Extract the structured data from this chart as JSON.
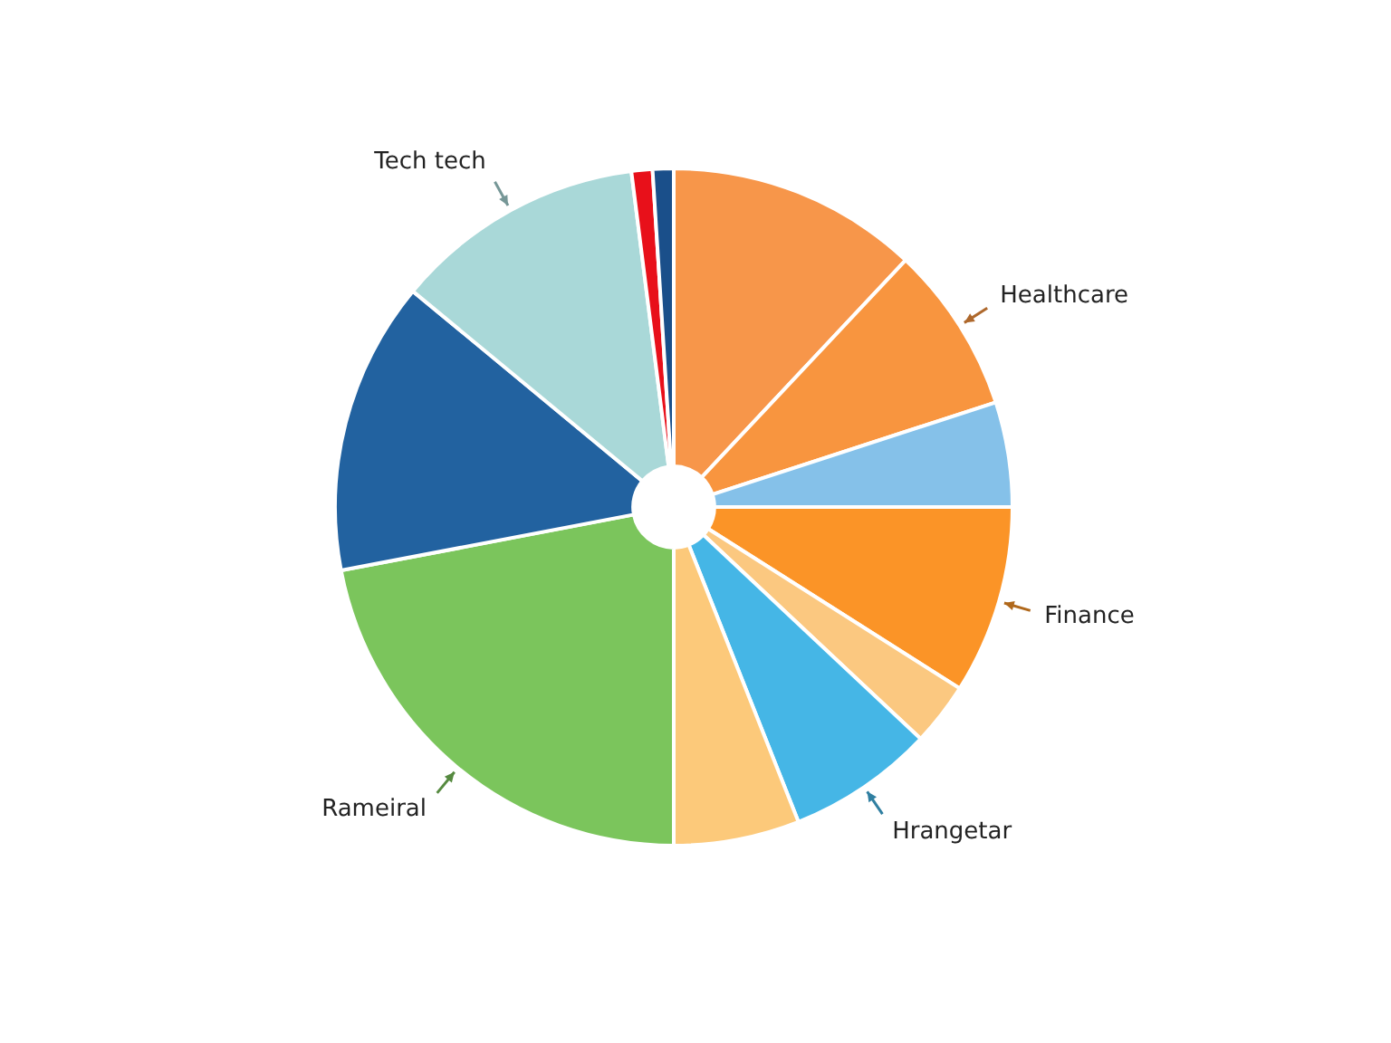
{
  "chart_data": {
    "type": "pie",
    "categories": [
      null,
      "Healthcare",
      null,
      "Finance",
      null,
      "Hrangetar",
      null,
      "Rameiral",
      null,
      "Tech tech",
      null,
      null
    ],
    "values": [
      12,
      8,
      5,
      9,
      3,
      7,
      6,
      22,
      14,
      12,
      1,
      1
    ],
    "colors": [
      "#f7964a",
      "#f8953f",
      "#85c1e9",
      "#fb9427",
      "#fbc880",
      "#45b6e6",
      "#fcc97a",
      "#7bc55c",
      "#2262a0",
      "#a9d8d8",
      "#e8101a",
      "#1a4f8a"
    ]
  }
}
